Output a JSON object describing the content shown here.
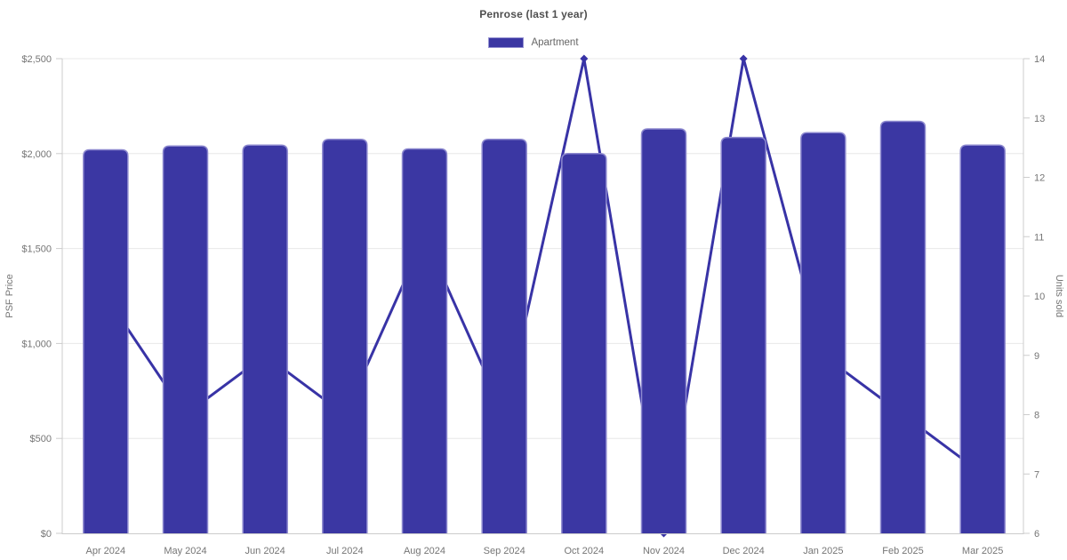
{
  "chart_data": {
    "type": "bar",
    "title": "Penrose (last 1 year)",
    "legend": [
      {
        "label": "Apartment",
        "color": "#3b37a3",
        "border": "#9693d2"
      }
    ],
    "categories": [
      "Apr 2024",
      "May 2024",
      "Jun 2024",
      "Jul 2024",
      "Aug 2024",
      "Sep 2024",
      "Oct 2024",
      "Nov 2024",
      "Dec 2024",
      "Jan 2025",
      "Feb 2025",
      "Mar 2025"
    ],
    "series": [
      {
        "name": "Apartment",
        "type": "bar",
        "axis": "left",
        "values": [
          2020,
          2040,
          2045,
          2075,
          2025,
          2075,
          2000,
          2130,
          2085,
          2110,
          2170,
          2045
        ]
      },
      {
        "name": "Units sold",
        "type": "line",
        "axis": "right",
        "values": [
          10,
          8,
          9,
          8,
          11,
          8,
          14,
          6,
          14,
          9,
          8,
          7
        ]
      }
    ],
    "left_axis": {
      "label": "PSF Price",
      "min": 0,
      "max": 2500,
      "ticks": [
        {
          "value": 0,
          "text": "$0"
        },
        {
          "value": 500,
          "text": "$500"
        },
        {
          "value": 1000,
          "text": "$1,000"
        },
        {
          "value": 1500,
          "text": "$1,500"
        },
        {
          "value": 2000,
          "text": "$2,000"
        },
        {
          "value": 2500,
          "text": "$2,500"
        }
      ]
    },
    "right_axis": {
      "label": "Units sold",
      "min": 6,
      "max": 14,
      "ticks": [
        {
          "value": 6,
          "text": "6"
        },
        {
          "value": 7,
          "text": "7"
        },
        {
          "value": 8,
          "text": "8"
        },
        {
          "value": 9,
          "text": "9"
        },
        {
          "value": 10,
          "text": "10"
        },
        {
          "value": 11,
          "text": "11"
        },
        {
          "value": 12,
          "text": "12"
        },
        {
          "value": 13,
          "text": "13"
        },
        {
          "value": 14,
          "text": "14"
        }
      ]
    },
    "grid": "horizontal-left-axis-only",
    "legend_position": "top-center",
    "colors": {
      "bar_fill": "#3b37a3",
      "bar_border": "#8d89cf",
      "line": "#3833a6",
      "marker": "#3833a6",
      "gridline": "#e8e8e8",
      "axis_line": "#cccccc",
      "tick_text": "#757575",
      "title_text": "#4f4f4f",
      "legend_text": "#666666"
    }
  }
}
